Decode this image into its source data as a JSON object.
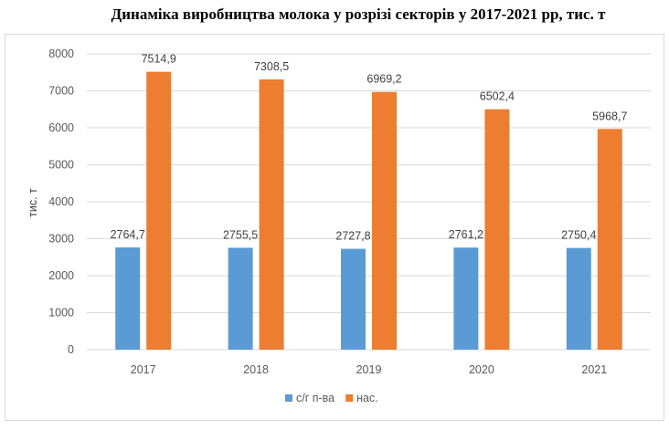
{
  "chart_data": {
    "type": "bar",
    "title": "Динаміка виробництва молока у розрізі секторів у 2017-2021 рр, тис. т",
    "ylabel": "тис. т",
    "xlabel": "",
    "categories": [
      "2017",
      "2018",
      "2019",
      "2020",
      "2021"
    ],
    "series": [
      {
        "name": "с/г п-ва",
        "color": "#5b9bd5",
        "values": [
          2764.7,
          2755.5,
          2727.8,
          2761.2,
          2750.4
        ],
        "labels": [
          "2764,7",
          "2755,5",
          "2727,8",
          "2761,2",
          "2750,4"
        ]
      },
      {
        "name": "нас.",
        "color": "#ed7d31",
        "values": [
          7514.9,
          7308.5,
          6969.2,
          6502.4,
          5968.7
        ],
        "labels": [
          "7514,9",
          "7308,5",
          "6969,2",
          "6502,4",
          "5968,7"
        ]
      }
    ],
    "ylim": [
      0,
      8000
    ],
    "yticks": [
      "0",
      "1000",
      "2000",
      "3000",
      "4000",
      "5000",
      "6000",
      "7000",
      "8000"
    ],
    "grid": true,
    "legend_position": "bottom"
  }
}
